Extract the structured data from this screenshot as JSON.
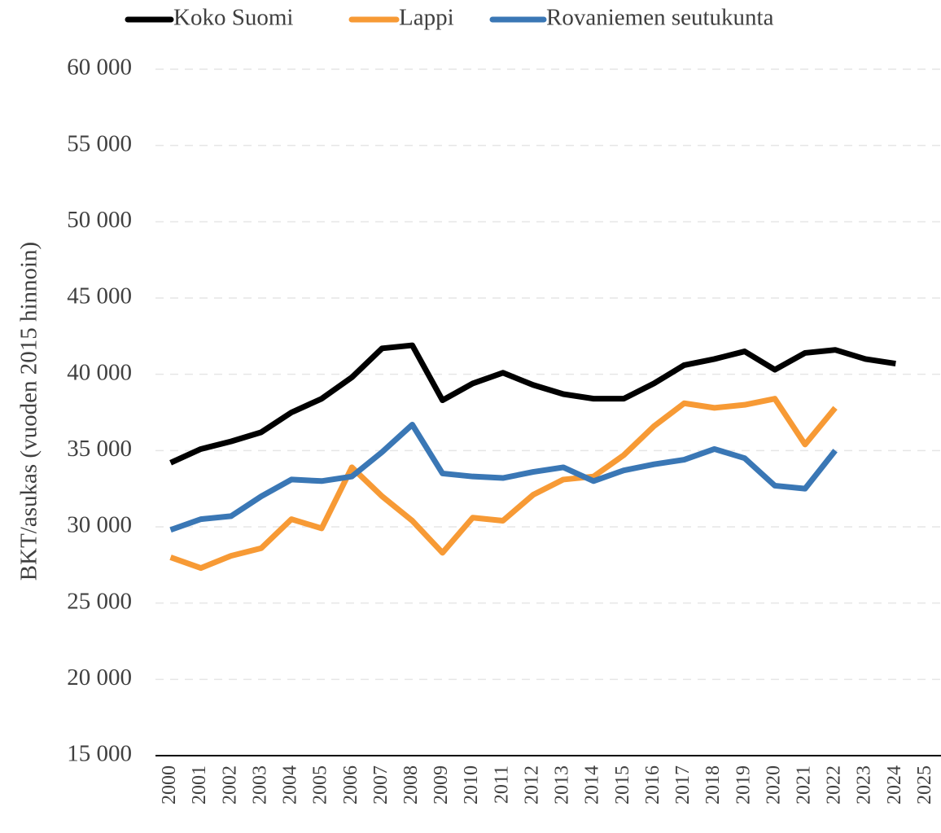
{
  "chart_data": {
    "type": "line",
    "y_label": "BKT/asukas (vuoden 2015 hinnoin)",
    "categories": [
      "2000",
      "2001",
      "2002",
      "2003",
      "2004",
      "2005",
      "2006",
      "2007",
      "2008",
      "2009",
      "2010",
      "2011",
      "2012",
      "2013",
      "2014",
      "2015",
      "2016",
      "2017",
      "2018",
      "2019",
      "2020",
      "2021",
      "2022",
      "2023",
      "2024",
      "2025"
    ],
    "series": [
      {
        "name": "Koko Suomi",
        "color": "#000000",
        "values": [
          34200,
          35100,
          35600,
          36200,
          37500,
          38400,
          39800,
          41700,
          41900,
          38300,
          39400,
          40100,
          39300,
          38700,
          38400,
          38400,
          39400,
          40600,
          41000,
          41500,
          40300,
          41400,
          41600,
          41000,
          40700,
          null
        ]
      },
      {
        "name": "Lappi",
        "color": "#f79a35",
        "values": [
          28000,
          27300,
          28100,
          28600,
          30500,
          29900,
          33900,
          32000,
          30400,
          28300,
          30600,
          30400,
          32100,
          33100,
          33300,
          34700,
          36600,
          38100,
          37800,
          38000,
          38400,
          35400,
          37800,
          null,
          null,
          null
        ]
      },
      {
        "name": "Rovaniemen seutukunta",
        "color": "#3a77b5",
        "values": [
          29800,
          30500,
          30700,
          32000,
          33100,
          33000,
          33300,
          34900,
          36700,
          33500,
          33300,
          33200,
          33600,
          33900,
          33000,
          33700,
          34100,
          34400,
          35100,
          34500,
          32700,
          32500,
          35000,
          null,
          null,
          null
        ]
      }
    ],
    "ylim": [
      15000,
      60000
    ],
    "yticks": [
      {
        "value": 15000,
        "label": "15 000"
      },
      {
        "value": 20000,
        "label": "20 000"
      },
      {
        "value": 25000,
        "label": "25 000"
      },
      {
        "value": 30000,
        "label": "30 000"
      },
      {
        "value": 35000,
        "label": "35 000"
      },
      {
        "value": 40000,
        "label": "40 000"
      },
      {
        "value": 45000,
        "label": "45 000"
      },
      {
        "value": 50000,
        "label": "50 000"
      },
      {
        "value": 55000,
        "label": "55 000"
      },
      {
        "value": 60000,
        "label": "60 000"
      }
    ],
    "grid": true,
    "legend": "top"
  }
}
